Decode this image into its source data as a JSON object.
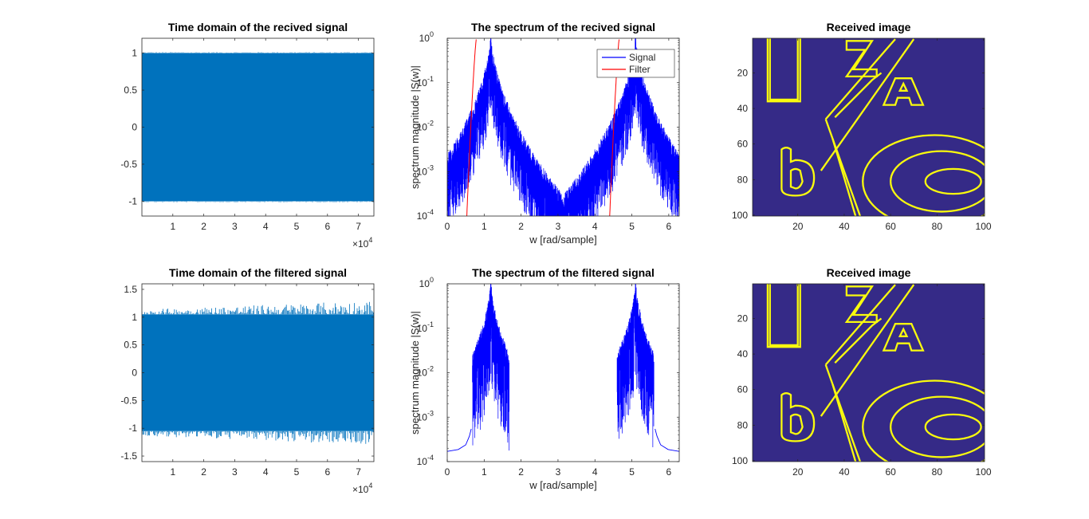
{
  "figure": {
    "background": "#ffffff",
    "axis_color": "#262626"
  },
  "chart_data": [
    {
      "id": "p1",
      "type": "line",
      "title": "Time domain of the recived signal",
      "xlabel": "",
      "ylabel": "",
      "xlim": [
        0,
        75000
      ],
      "ylim": [
        -1.2,
        1.2
      ],
      "xticks": [
        10000,
        20000,
        30000,
        40000,
        50000,
        60000,
        70000
      ],
      "xtick_labels": [
        "1",
        "2",
        "3",
        "4",
        "5",
        "6",
        "7"
      ],
      "yticks": [
        -1,
        -0.5,
        0,
        0.5,
        1
      ],
      "ytick_labels": [
        "-1",
        "-0.5",
        "0",
        "0.5",
        "1"
      ],
      "exponent_label": "×10",
      "exponent_power": "4",
      "series": [
        {
          "color": "#0072bd",
          "envelope": [
            -1,
            1
          ],
          "spike_max": 1.0
        }
      ]
    },
    {
      "id": "p2",
      "type": "line",
      "title": "The spectrum of the recived signal",
      "xlabel": "w [rad/sample]",
      "ylabel": "spectrum magnitude |S(w)|",
      "xscale": "linear",
      "yscale": "log",
      "xlim": [
        0,
        6.2832
      ],
      "ylim": [
        0.0001,
        1
      ],
      "xticks": [
        0,
        1,
        2,
        3,
        4,
        5,
        6
      ],
      "xtick_labels": [
        "0",
        "1",
        "2",
        "3",
        "4",
        "5",
        "6"
      ],
      "yticks": [
        0.0001,
        0.001,
        0.01,
        0.1,
        1
      ],
      "ytick_base": "10",
      "ytick_powers": [
        "-4",
        "-3",
        "-2",
        "-1",
        "0"
      ],
      "legend": {
        "position": "top-right",
        "entries": [
          "Signal",
          "Filter"
        ]
      },
      "series": [
        {
          "name": "Signal",
          "color": "#0000ff",
          "peaks": [
            1.18,
            5.1
          ],
          "peak_value": 1.0,
          "floor": 0.00012
        },
        {
          "name": "Filter",
          "color": "#ff0000",
          "passbands": [
            [
              0.79,
              1.62
            ],
            [
              4.66,
              5.49
            ]
          ],
          "level": 1.0
        }
      ]
    },
    {
      "id": "p3",
      "type": "heatmap",
      "title": "Received image",
      "xlim": [
        0.5,
        100.5
      ],
      "ylim": [
        0.5,
        100.5
      ],
      "xticks": [
        20,
        40,
        60,
        80,
        100
      ],
      "xtick_labels": [
        "20",
        "40",
        "60",
        "80",
        "100"
      ],
      "yticks": [
        20,
        40,
        60,
        80,
        100
      ],
      "ytick_labels": [
        "20",
        "40",
        "60",
        "80",
        "100"
      ],
      "colors": {
        "background": "#352a87",
        "foreground": "#f9fb0e"
      },
      "content_letters": [
        "U",
        "Z",
        "A",
        "b",
        "O"
      ]
    },
    {
      "id": "p4",
      "type": "line",
      "title": "Time domain of the filtered signal",
      "xlabel": "",
      "ylabel": "",
      "xlim": [
        0,
        75000
      ],
      "ylim": [
        -1.6,
        1.6
      ],
      "xticks": [
        10000,
        20000,
        30000,
        40000,
        50000,
        60000,
        70000
      ],
      "xtick_labels": [
        "1",
        "2",
        "3",
        "4",
        "5",
        "6",
        "7"
      ],
      "yticks": [
        -1.5,
        -1,
        -0.5,
        0,
        0.5,
        1,
        1.5
      ],
      "ytick_labels": [
        "-1.5",
        "-1",
        "-0.5",
        "0",
        "0.5",
        "1",
        "1.5"
      ],
      "exponent_label": "×10",
      "exponent_power": "4",
      "series": [
        {
          "color": "#0072bd",
          "envelope": [
            -1.05,
            1.05
          ],
          "spike_max": 1.3
        }
      ]
    },
    {
      "id": "p5",
      "type": "line",
      "title": "The spectrum of the filtered  signal",
      "xlabel": "w [rad/sample]",
      "ylabel": "spectrum magnitude |S(w)|",
      "xscale": "linear",
      "yscale": "log",
      "xlim": [
        0,
        6.2832
      ],
      "ylim": [
        0.0001,
        1
      ],
      "xticks": [
        0,
        1,
        2,
        3,
        4,
        5,
        6
      ],
      "xtick_labels": [
        "0",
        "1",
        "2",
        "3",
        "4",
        "5",
        "6"
      ],
      "yticks": [
        0.0001,
        0.001,
        0.01,
        0.1,
        1
      ],
      "ytick_base": "10",
      "ytick_powers": [
        "-4",
        "-3",
        "-2",
        "-1",
        "0"
      ],
      "series": [
        {
          "color": "#0000ff",
          "peaks": [
            1.18,
            5.1
          ],
          "peak_value": 1.0,
          "edge_value": 0.00017
        }
      ]
    },
    {
      "id": "p6",
      "type": "heatmap",
      "title": "Received image",
      "xlim": [
        0.5,
        100.5
      ],
      "ylim": [
        0.5,
        100.5
      ],
      "xticks": [
        20,
        40,
        60,
        80,
        100
      ],
      "xtick_labels": [
        "20",
        "40",
        "60",
        "80",
        "100"
      ],
      "yticks": [
        20,
        40,
        60,
        80,
        100
      ],
      "ytick_labels": [
        "20",
        "40",
        "60",
        "80",
        "100"
      ],
      "colors": {
        "background": "#352a87",
        "foreground": "#f9fb0e"
      },
      "content_letters": [
        "U",
        "Z",
        "A",
        "b",
        "O"
      ]
    }
  ]
}
